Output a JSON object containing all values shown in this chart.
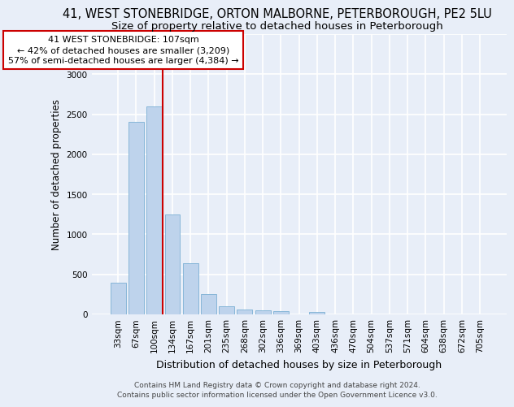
{
  "title": "41, WEST STONEBRIDGE, ORTON MALBORNE, PETERBOROUGH, PE2 5LU",
  "subtitle": "Size of property relative to detached houses in Peterborough",
  "xlabel": "Distribution of detached houses by size in Peterborough",
  "ylabel": "Number of detached properties",
  "categories": [
    "33sqm",
    "67sqm",
    "100sqm",
    "134sqm",
    "167sqm",
    "201sqm",
    "235sqm",
    "268sqm",
    "302sqm",
    "336sqm",
    "369sqm",
    "403sqm",
    "436sqm",
    "470sqm",
    "504sqm",
    "537sqm",
    "571sqm",
    "604sqm",
    "638sqm",
    "672sqm",
    "705sqm"
  ],
  "values": [
    400,
    2400,
    2600,
    1250,
    640,
    250,
    100,
    60,
    55,
    40,
    0,
    30,
    0,
    0,
    0,
    0,
    0,
    0,
    0,
    0,
    0
  ],
  "bar_color": "#bed3ec",
  "bar_edgecolor": "#7bafd4",
  "background_color": "#e8eef8",
  "grid_color": "#ffffff",
  "annotation_text": "41 WEST STONEBRIDGE: 107sqm\n← 42% of detached houses are smaller (3,209)\n57% of semi-detached houses are larger (4,384) →",
  "annotation_box_color": "#ffffff",
  "annotation_box_edgecolor": "#cc0000",
  "vline_x": 2.45,
  "vline_color": "#cc0000",
  "ylim": [
    0,
    3500
  ],
  "yticks": [
    0,
    500,
    1000,
    1500,
    2000,
    2500,
    3000,
    3500
  ],
  "footnote": "Contains HM Land Registry data © Crown copyright and database right 2024.\nContains public sector information licensed under the Open Government Licence v3.0.",
  "title_fontsize": 10.5,
  "subtitle_fontsize": 9.5,
  "xlabel_fontsize": 9,
  "ylabel_fontsize": 8.5,
  "tick_fontsize": 7.5,
  "annotation_fontsize": 8,
  "footnote_fontsize": 6.5
}
